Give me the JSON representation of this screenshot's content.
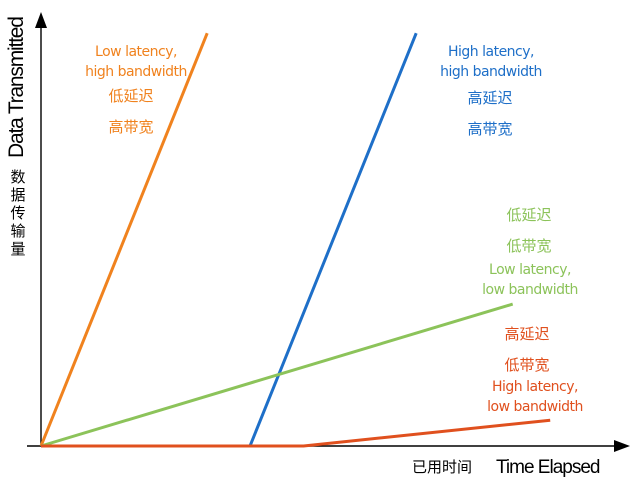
{
  "chart_data": {
    "type": "line",
    "title": "",
    "xlabel": "Time Elapsed",
    "xlabel_cn": "已用时间",
    "ylabel": "Data Transmitted",
    "ylabel_cn": "数据传输量",
    "x_ticks": "none",
    "y_ticks": "none",
    "grid": false,
    "legend": "none",
    "xlim": [
      0,
      100
    ],
    "ylim": [
      0,
      100
    ],
    "series": [
      {
        "key": "low_latency_high_bandwidth",
        "label_en": [
          "Low latency,",
          "high bandwidth"
        ],
        "label_cn": [
          "低延迟",
          "高带宽"
        ],
        "color": "#F0821E",
        "x": [
          0,
          31
        ],
        "y": [
          0,
          96
        ]
      },
      {
        "key": "high_latency_high_bandwidth",
        "label_en": [
          "High latency,",
          "high bandwidth"
        ],
        "label_cn": [
          "高延迟",
          "高带宽"
        ],
        "color": "#1E6FC8",
        "x": [
          0,
          39,
          70
        ],
        "y": [
          0,
          0,
          96
        ]
      },
      {
        "key": "low_latency_low_bandwidth",
        "label_en": [
          "Low latency,",
          "low bandwidth"
        ],
        "label_cn": [
          "低延迟",
          "低带宽"
        ],
        "color": "#8CC35A",
        "x": [
          0,
          88
        ],
        "y": [
          0,
          33
        ]
      },
      {
        "key": "high_latency_low_bandwidth",
        "label_en": [
          "High latency,",
          "low bandwidth"
        ],
        "label_cn": [
          "高延迟",
          "低带宽"
        ],
        "color": "#E0501E",
        "x": [
          0,
          49,
          95
        ],
        "y": [
          0,
          0,
          6
        ]
      }
    ]
  }
}
